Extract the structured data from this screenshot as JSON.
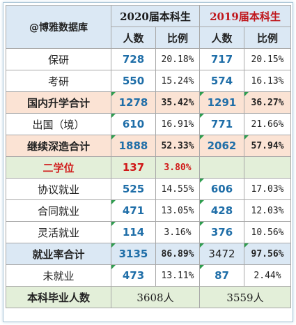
{
  "header": {
    "brand": "@博雅数据库",
    "col_2020": "2020届本科生",
    "col_2019": "2019届本科生",
    "count_label": "人数",
    "ratio_label": "比例"
  },
  "rows": [
    {
      "label": "保研",
      "n2020": "728",
      "p2020": "20.18%",
      "n2019": "717",
      "p2019": "20.15%"
    },
    {
      "label": "考研",
      "n2020": "550",
      "p2020": "15.24%",
      "n2019": "574",
      "p2019": "16.13%"
    },
    {
      "label": "国内升学合计",
      "n2020": "1278",
      "p2020": "35.42%",
      "n2019": "1291",
      "p2019": "36.27%"
    },
    {
      "label": "出国（境）",
      "n2020": "610",
      "p2020": "16.91%",
      "n2019": "771",
      "p2019": "21.66%"
    },
    {
      "label": "继续深造合计",
      "n2020": "1888",
      "p2020": "52.33%",
      "n2019": "2062",
      "p2019": "57.94%"
    },
    {
      "label": "二学位",
      "n2020": "137",
      "p2020": "3.80%",
      "n2019": "",
      "p2019": ""
    },
    {
      "label": "协议就业",
      "n2020": "525",
      "p2020": "14.55%",
      "n2019": "606",
      "p2019": "17.03%"
    },
    {
      "label": "合同就业",
      "n2020": "471",
      "p2020": "13.05%",
      "n2019": "428",
      "p2019": "12.03%"
    },
    {
      "label": "灵活就业",
      "n2020": "114",
      "p2020": "3.16%",
      "n2019": "376",
      "p2019": "10.56%"
    },
    {
      "label": "就业率合计",
      "n2020": "3135",
      "p2020": "86.89%",
      "n2019": "3472",
      "p2019": "97.56%"
    },
    {
      "label": "未就业",
      "n2020": "473",
      "p2020": "13.11%",
      "n2019": "87",
      "p2019": "2.44%"
    }
  ],
  "footer": {
    "label": "本科毕业人数",
    "total_2020": "3608人",
    "total_2019": "3559人"
  }
}
